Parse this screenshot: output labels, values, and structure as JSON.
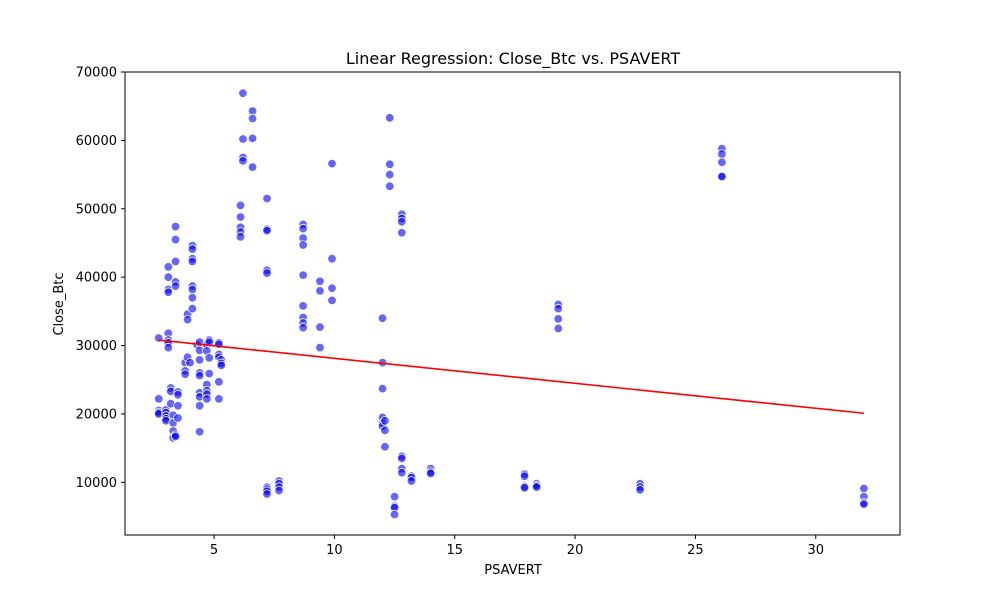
{
  "chart_data": {
    "type": "scatter",
    "title": "Linear Regression: Close_Btc vs. PSAVERT",
    "xlabel": "PSAVERT",
    "ylabel": "Close_Btc",
    "xlim": [
      1.3,
      33.5
    ],
    "ylim": [
      2300,
      70000
    ],
    "xticks": [
      5,
      10,
      15,
      20,
      25,
      30
    ],
    "yticks": [
      10000,
      20000,
      30000,
      40000,
      50000,
      60000,
      70000
    ],
    "grid": false,
    "legend": "none",
    "point_color": "#0000ff",
    "line_color": "#ff0000",
    "regression_line": {
      "x": [
        2.7,
        32.0
      ],
      "y": [
        30800,
        20100
      ]
    },
    "points": [
      [
        2.7,
        31100
      ],
      [
        2.7,
        22200
      ],
      [
        2.7,
        20500
      ],
      [
        2.7,
        20200
      ],
      [
        2.7,
        20000
      ],
      [
        3.0,
        20600
      ],
      [
        3.0,
        20200
      ],
      [
        3.0,
        19700
      ],
      [
        3.0,
        19300
      ],
      [
        3.0,
        19000
      ],
      [
        3.1,
        41500
      ],
      [
        3.1,
        40000
      ],
      [
        3.1,
        38200
      ],
      [
        3.1,
        37800
      ],
      [
        3.1,
        31800
      ],
      [
        3.1,
        30800
      ],
      [
        3.1,
        30400
      ],
      [
        3.1,
        29700
      ],
      [
        3.2,
        23800
      ],
      [
        3.2,
        23300
      ],
      [
        3.2,
        21500
      ],
      [
        3.3,
        19800
      ],
      [
        3.3,
        18700
      ],
      [
        3.3,
        17500
      ],
      [
        3.3,
        16500
      ],
      [
        3.4,
        16900
      ],
      [
        3.4,
        16700
      ],
      [
        3.4,
        47400
      ],
      [
        3.4,
        45500
      ],
      [
        3.4,
        42300
      ],
      [
        3.4,
        39300
      ],
      [
        3.4,
        38700
      ],
      [
        3.5,
        23200
      ],
      [
        3.5,
        22800
      ],
      [
        3.5,
        21200
      ],
      [
        3.5,
        19400
      ],
      [
        3.8,
        27500
      ],
      [
        3.8,
        26300
      ],
      [
        3.8,
        25800
      ],
      [
        3.9,
        28300
      ],
      [
        3.9,
        34600
      ],
      [
        3.9,
        33800
      ],
      [
        4.0,
        27500
      ],
      [
        4.1,
        44600
      ],
      [
        4.1,
        44100
      ],
      [
        4.1,
        42700
      ],
      [
        4.1,
        42300
      ],
      [
        4.1,
        38700
      ],
      [
        4.1,
        38200
      ],
      [
        4.1,
        37000
      ],
      [
        4.1,
        35400
      ],
      [
        4.3,
        30100
      ],
      [
        4.4,
        30500
      ],
      [
        4.4,
        29300
      ],
      [
        4.4,
        27900
      ],
      [
        4.4,
        26000
      ],
      [
        4.4,
        25600
      ],
      [
        4.4,
        23100
      ],
      [
        4.4,
        22500
      ],
      [
        4.4,
        21200
      ],
      [
        4.4,
        17400
      ],
      [
        4.7,
        30100
      ],
      [
        4.7,
        29200
      ],
      [
        4.7,
        24300
      ],
      [
        4.7,
        23400
      ],
      [
        4.7,
        22900
      ],
      [
        4.7,
        22200
      ],
      [
        4.8,
        30800
      ],
      [
        4.8,
        30500
      ],
      [
        4.8,
        28200
      ],
      [
        4.8,
        25900
      ],
      [
        5.2,
        30400
      ],
      [
        5.2,
        30200
      ],
      [
        5.2,
        28700
      ],
      [
        5.2,
        28300
      ],
      [
        5.2,
        24700
      ],
      [
        5.2,
        22200
      ],
      [
        5.3,
        27900
      ],
      [
        5.3,
        27400
      ],
      [
        5.3,
        27100
      ],
      [
        6.1,
        50500
      ],
      [
        6.1,
        48800
      ],
      [
        6.1,
        47300
      ],
      [
        6.1,
        46600
      ],
      [
        6.1,
        45900
      ],
      [
        6.2,
        66900
      ],
      [
        6.2,
        60200
      ],
      [
        6.2,
        57500
      ],
      [
        6.2,
        57000
      ],
      [
        6.6,
        64300
      ],
      [
        6.6,
        63200
      ],
      [
        6.6,
        60300
      ],
      [
        6.6,
        56100
      ],
      [
        7.2,
        51500
      ],
      [
        7.2,
        47000
      ],
      [
        7.2,
        46800
      ],
      [
        7.2,
        41000
      ],
      [
        7.2,
        40600
      ],
      [
        7.2,
        9300
      ],
      [
        7.2,
        9000
      ],
      [
        7.2,
        8700
      ],
      [
        7.2,
        8300
      ],
      [
        7.7,
        10200
      ],
      [
        7.7,
        9800
      ],
      [
        7.7,
        9300
      ],
      [
        7.7,
        8800
      ],
      [
        8.7,
        47700
      ],
      [
        8.7,
        47100
      ],
      [
        8.7,
        45700
      ],
      [
        8.7,
        44700
      ],
      [
        8.7,
        40300
      ],
      [
        8.7,
        35800
      ],
      [
        8.7,
        34100
      ],
      [
        8.7,
        33300
      ],
      [
        8.7,
        32600
      ],
      [
        9.4,
        39400
      ],
      [
        9.4,
        38000
      ],
      [
        9.4,
        32700
      ],
      [
        9.4,
        29700
      ],
      [
        9.9,
        56600
      ],
      [
        9.9,
        42700
      ],
      [
        9.9,
        38400
      ],
      [
        9.9,
        36600
      ],
      [
        12.0,
        34000
      ],
      [
        12.0,
        27500
      ],
      [
        12.0,
        23700
      ],
      [
        12.0,
        19500
      ],
      [
        12.0,
        18600
      ],
      [
        12.0,
        18200
      ],
      [
        12.1,
        19000
      ],
      [
        12.1,
        17600
      ],
      [
        12.1,
        15200
      ],
      [
        12.3,
        63300
      ],
      [
        12.3,
        56500
      ],
      [
        12.3,
        55000
      ],
      [
        12.3,
        53300
      ],
      [
        12.5,
        7900
      ],
      [
        12.5,
        6500
      ],
      [
        12.5,
        6300
      ],
      [
        12.5,
        5300
      ],
      [
        12.8,
        49200
      ],
      [
        12.8,
        48600
      ],
      [
        12.8,
        48100
      ],
      [
        12.8,
        46500
      ],
      [
        12.8,
        13800
      ],
      [
        12.8,
        13500
      ],
      [
        12.8,
        12000
      ],
      [
        12.8,
        11400
      ],
      [
        13.2,
        10900
      ],
      [
        13.2,
        10700
      ],
      [
        13.2,
        10200
      ],
      [
        14.0,
        12000
      ],
      [
        14.0,
        11500
      ],
      [
        14.0,
        11300
      ],
      [
        17.9,
        11200
      ],
      [
        17.9,
        10900
      ],
      [
        17.9,
        9400
      ],
      [
        17.9,
        9200
      ],
      [
        18.4,
        9800
      ],
      [
        18.4,
        9500
      ],
      [
        18.4,
        9300
      ],
      [
        19.3,
        36000
      ],
      [
        19.3,
        35400
      ],
      [
        19.3,
        33900
      ],
      [
        19.3,
        32500
      ],
      [
        22.7,
        9800
      ],
      [
        22.7,
        9300
      ],
      [
        22.7,
        8900
      ],
      [
        26.1,
        58800
      ],
      [
        26.1,
        58000
      ],
      [
        26.1,
        56800
      ],
      [
        26.1,
        54800
      ],
      [
        26.1,
        54700
      ],
      [
        32.0,
        9100
      ],
      [
        32.0,
        7900
      ],
      [
        32.0,
        7000
      ],
      [
        32.0,
        6800
      ]
    ]
  }
}
